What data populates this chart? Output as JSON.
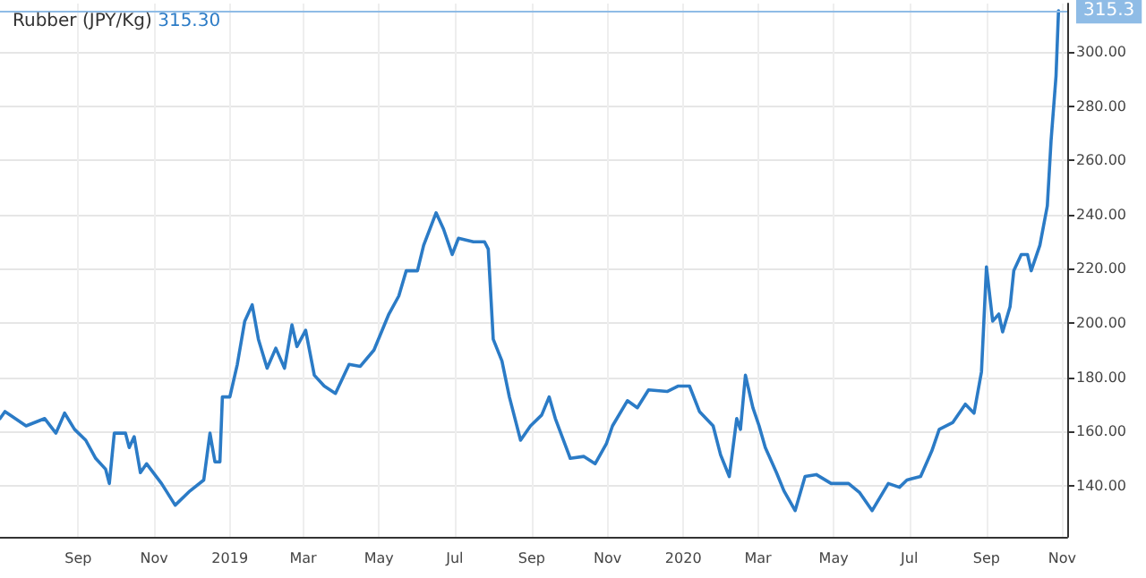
{
  "chart_data": {
    "type": "line",
    "title": "Rubber (JPY/Kg)",
    "annotations": [
      "315.30"
    ],
    "x": [
      "2018-06-30",
      "2018-07-04",
      "2018-07-21",
      "2018-08-05",
      "2018-08-14",
      "2018-08-21",
      "2018-08-29",
      "2018-09-07",
      "2018-09-15",
      "2018-09-23",
      "2018-09-26",
      "2018-09-30",
      "2018-10-09",
      "2018-10-12",
      "2018-10-16",
      "2018-10-21",
      "2018-10-26",
      "2018-11-07",
      "2018-11-18",
      "2018-11-30",
      "2018-12-11",
      "2018-12-16",
      "2018-12-20",
      "2018-12-24",
      "2018-12-26",
      "2019-01-01",
      "2019-01-07",
      "2019-01-13",
      "2019-01-19",
      "2019-01-24",
      "2019-01-31",
      "2019-02-07",
      "2019-02-14",
      "2019-02-20",
      "2019-02-24",
      "2019-03-03",
      "2019-03-10",
      "2019-03-18",
      "2019-03-27",
      "2019-04-07",
      "2019-04-16",
      "2019-04-27",
      "2019-05-09",
      "2019-05-17",
      "2019-05-23",
      "2019-06-01",
      "2019-06-06",
      "2019-06-16",
      "2019-06-22",
      "2019-06-29",
      "2019-07-04",
      "2019-07-16",
      "2019-07-25",
      "2019-07-28",
      "2019-08-01",
      "2019-08-08",
      "2019-08-14",
      "2019-08-23",
      "2019-08-31",
      "2019-09-09",
      "2019-09-15",
      "2019-09-20",
      "2019-10-02",
      "2019-10-13",
      "2019-10-22",
      "2019-10-31",
      "2019-11-05",
      "2019-11-17",
      "2019-11-25",
      "2019-12-04",
      "2019-12-19",
      "2019-12-28",
      "2020-01-06",
      "2020-01-14",
      "2020-01-25",
      "2020-01-31",
      "2020-02-07",
      "2020-02-13",
      "2020-02-16",
      "2020-02-20",
      "2020-02-26",
      "2020-03-02",
      "2020-03-07",
      "2020-03-16",
      "2020-03-22",
      "2020-03-31",
      "2020-04-08",
      "2020-04-17",
      "2020-04-29",
      "2020-05-13",
      "2020-05-22",
      "2020-06-01",
      "2020-06-14",
      "2020-06-23",
      "2020-06-29",
      "2020-07-10",
      "2020-07-19",
      "2020-07-25",
      "2020-08-05",
      "2020-08-15",
      "2020-08-22",
      "2020-08-28",
      "2020-09-01",
      "2020-09-06",
      "2020-09-11",
      "2020-09-14",
      "2020-09-20",
      "2020-09-23",
      "2020-09-29",
      "2020-10-04",
      "2020-10-07",
      "2020-10-14",
      "2020-10-20",
      "2020-10-23",
      "2020-10-27",
      "2020-10-29"
    ],
    "series": [
      {
        "color": "#2b7bc6",
        "values": [
          164.7,
          167.3,
          162,
          164.7,
          159.3,
          166.7,
          160.7,
          156.7,
          150,
          146,
          140.7,
          159.3,
          159.3,
          154,
          158,
          144.7,
          148,
          140.7,
          132.7,
          138,
          142,
          159.3,
          148.7,
          148.7,
          172.7,
          172.7,
          184.7,
          200.7,
          206.7,
          194,
          183.3,
          190.7,
          183.3,
          199.3,
          191.3,
          197.3,
          180.7,
          176.7,
          174,
          184.7,
          184,
          190,
          203.3,
          210,
          219.3,
          219.3,
          228.7,
          240.7,
          234.7,
          225.3,
          231.3,
          230,
          230,
          227.3,
          194,
          186,
          172.7,
          156.7,
          162,
          166,
          172.7,
          164.7,
          150,
          150.7,
          148,
          155.3,
          162,
          171.3,
          168.7,
          175.3,
          174.7,
          176.7,
          176.7,
          167.3,
          162,
          151.3,
          143.3,
          164.7,
          160.7,
          180.7,
          168.7,
          162,
          154,
          144.7,
          138,
          130.7,
          143.3,
          144,
          140.7,
          140.7,
          137.3,
          130.7,
          140.7,
          139.3,
          142,
          143.3,
          152.7,
          160.7,
          163.3,
          170,
          166.7,
          182,
          220.7,
          200.7,
          203.3,
          196.7,
          206,
          219.3,
          225.3,
          225.3,
          219.3,
          228.7,
          243.3,
          267.3,
          291.3,
          315.3
        ]
      }
    ],
    "xlim": [
      "2018-06-30",
      "2020-11-05"
    ],
    "xticks": [
      {
        "value": "2018-09-01",
        "label": "Sep"
      },
      {
        "value": "2018-11-01",
        "label": "Nov"
      },
      {
        "value": "2019-01-01",
        "label": "2019"
      },
      {
        "value": "2019-03-01",
        "label": "Mar"
      },
      {
        "value": "2019-05-01",
        "label": "May"
      },
      {
        "value": "2019-07-01",
        "label": "Jul"
      },
      {
        "value": "2019-09-01",
        "label": "Sep"
      },
      {
        "value": "2019-11-01",
        "label": "Nov"
      },
      {
        "value": "2020-01-01",
        "label": "2020"
      },
      {
        "value": "2020-03-01",
        "label": "Mar"
      },
      {
        "value": "2020-05-01",
        "label": "May"
      },
      {
        "value": "2020-07-01",
        "label": "Jul"
      },
      {
        "value": "2020-09-01",
        "label": "Sep"
      },
      {
        "value": "2020-11-01",
        "label": "Nov"
      }
    ],
    "ylim": [
      121,
      318
    ],
    "yticks": [
      {
        "value": 140,
        "label": "140.00"
      },
      {
        "value": 160,
        "label": "160.00"
      },
      {
        "value": 180,
        "label": "180.00"
      },
      {
        "value": 200,
        "label": "200.00"
      },
      {
        "value": 220,
        "label": "220.00"
      },
      {
        "value": 240,
        "label": "240.00"
      },
      {
        "value": 260,
        "label": "260.00"
      },
      {
        "value": 280,
        "label": "280.00"
      },
      {
        "value": 300,
        "label": "300.00"
      }
    ],
    "ref_lines": [
      {
        "axis": "y",
        "value": 315.3,
        "label": "315.3",
        "color": "#8fbce6"
      }
    ],
    "grid": true,
    "marker": "none",
    "line_style": "solid"
  }
}
